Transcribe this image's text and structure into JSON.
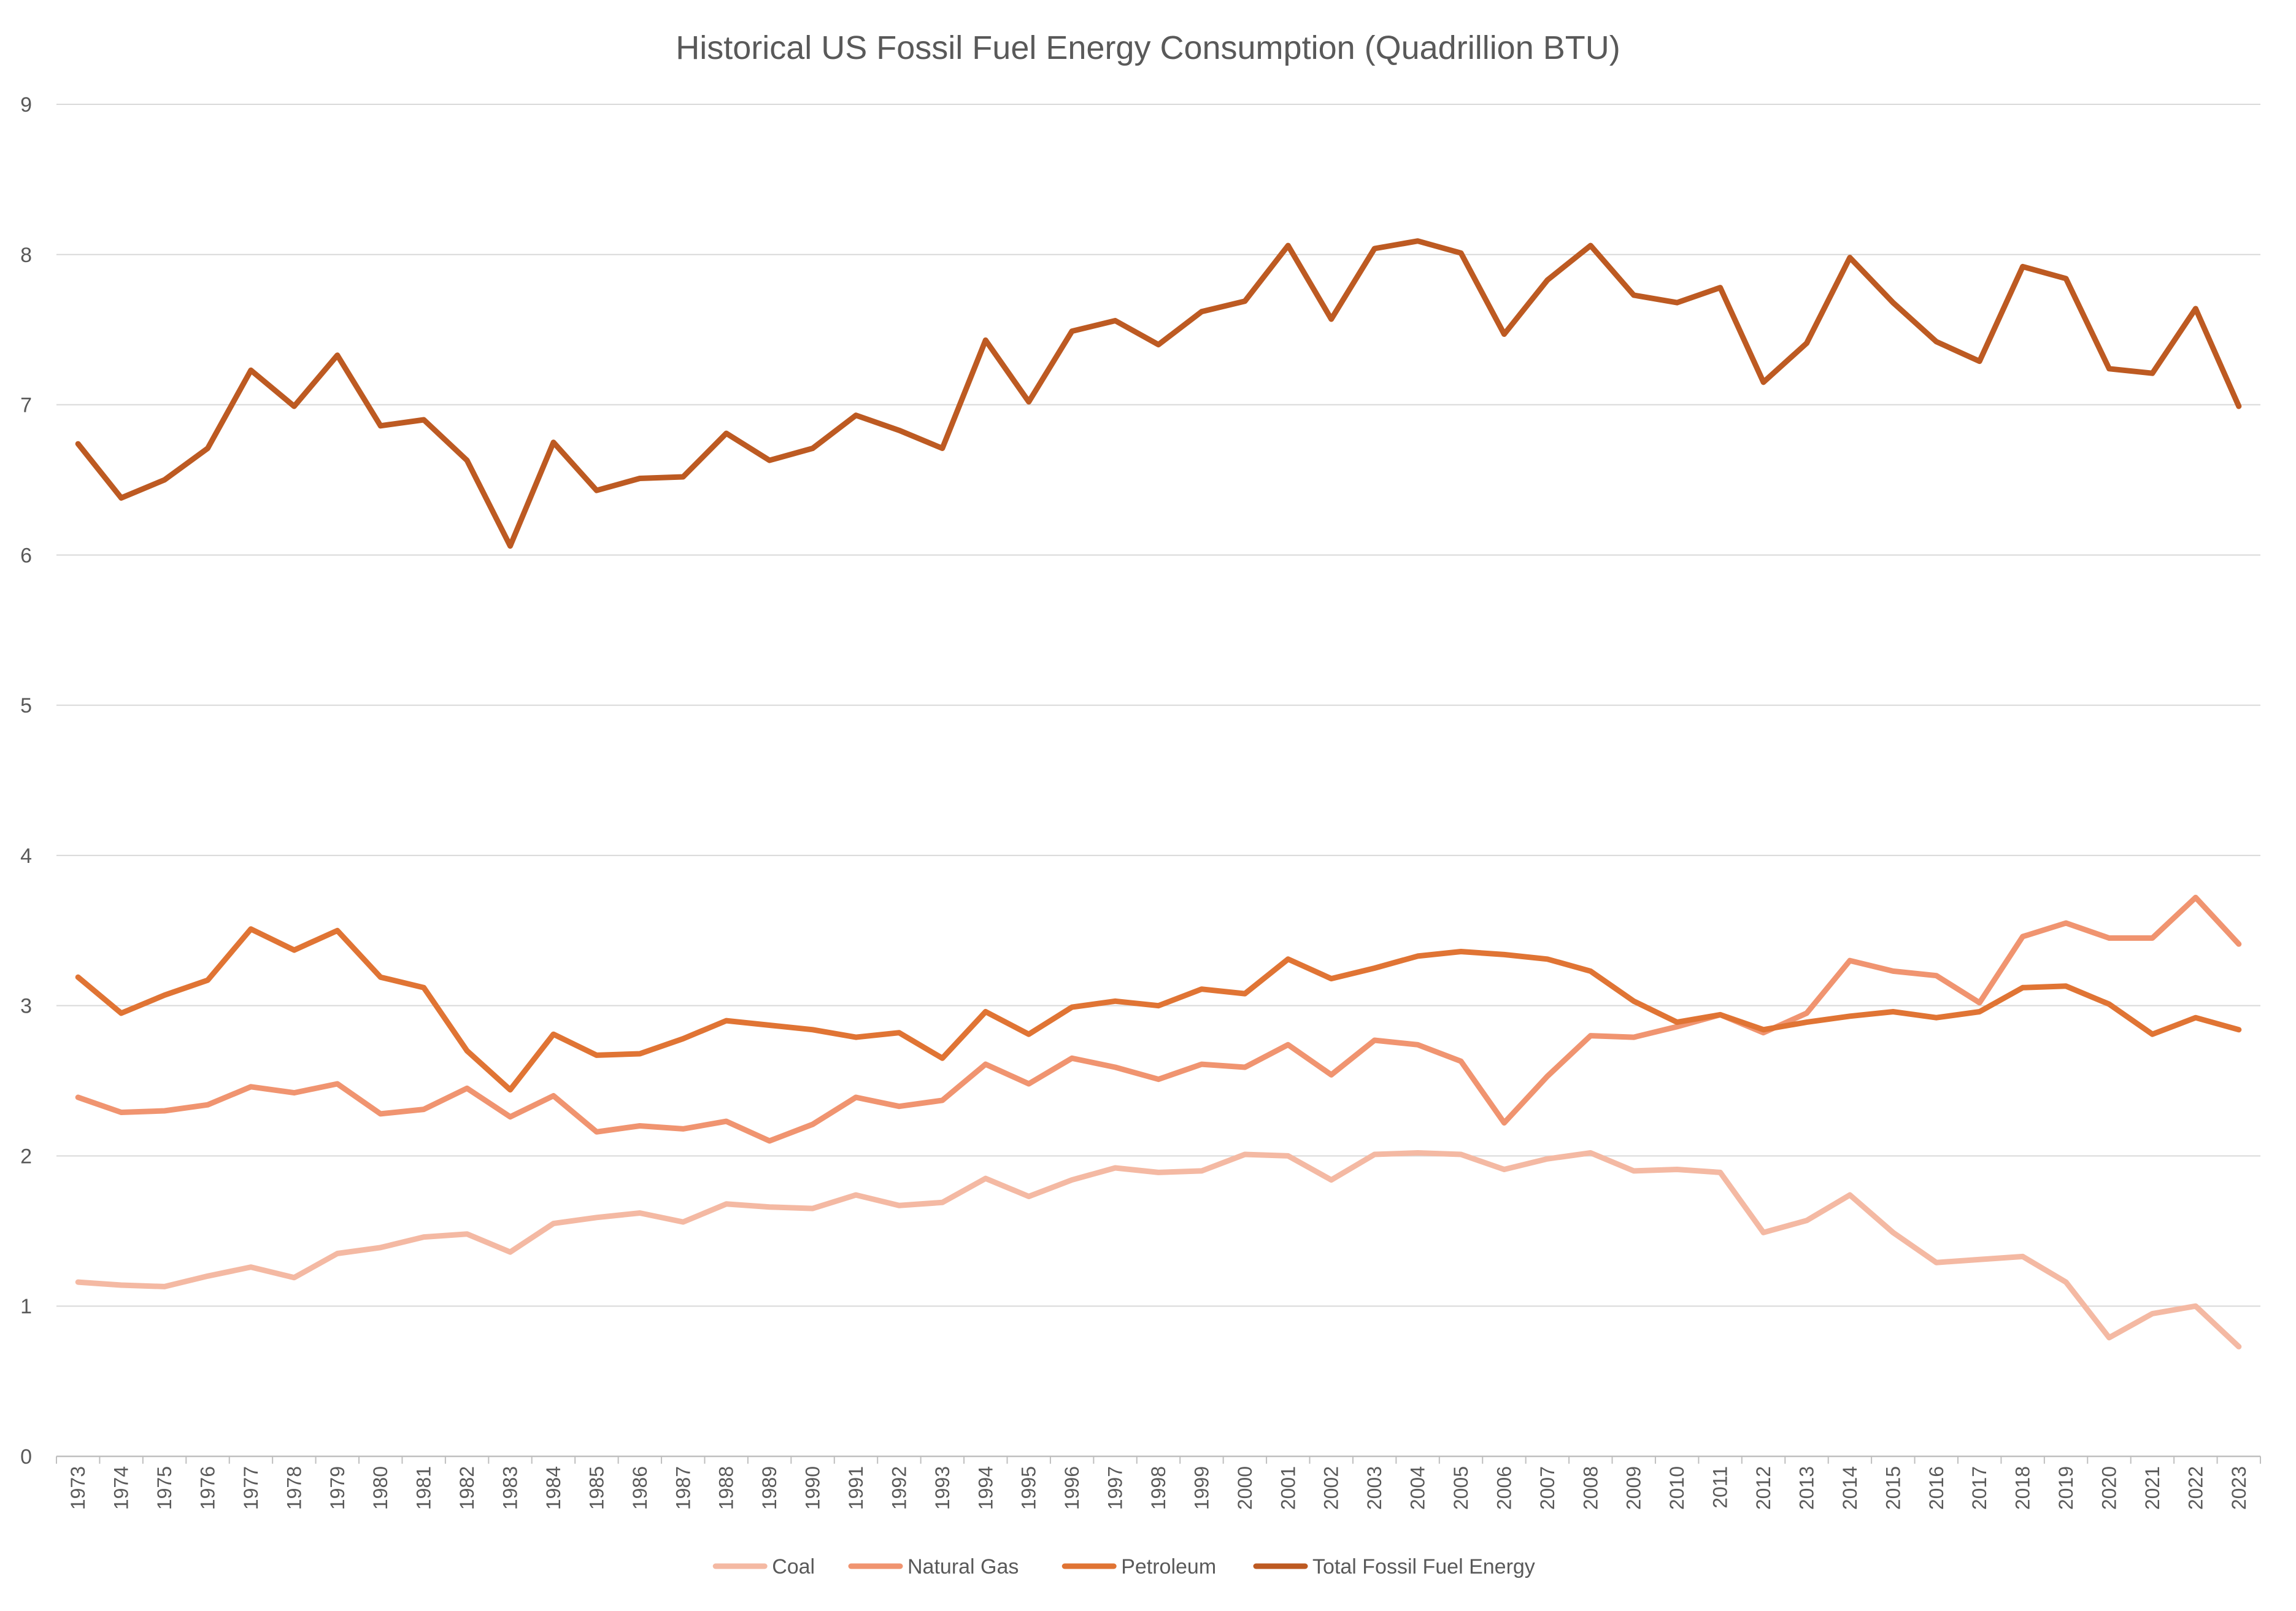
{
  "chart_data": {
    "type": "line",
    "title": "Historical US Fossil Fuel Energy Consumption (Quadrillion BTU)",
    "xlabel": "",
    "ylabel": "",
    "ylim": [
      0,
      9
    ],
    "yticks": [
      "0",
      "1",
      "2",
      "3",
      "4",
      "5",
      "6",
      "7",
      "8",
      "9"
    ],
    "grid": true,
    "legend_position": "bottom",
    "categories": [
      "1973",
      "1974",
      "1975",
      "1976",
      "1977",
      "1978",
      "1979",
      "1980",
      "1981",
      "1982",
      "1983",
      "1984",
      "1985",
      "1986",
      "1987",
      "1988",
      "1989",
      "1990",
      "1991",
      "1992",
      "1993",
      "1994",
      "1995",
      "1996",
      "1997",
      "1998",
      "1999",
      "2000",
      "2001",
      "2002",
      "2003",
      "2004",
      "2005",
      "2006",
      "2007",
      "2008",
      "2009",
      "2010",
      "2011",
      "2012",
      "2013",
      "2014",
      "2015",
      "2016",
      "2017",
      "2018",
      "2019",
      "2020",
      "2021",
      "2022",
      "2023"
    ],
    "series": [
      {
        "name": "Coal",
        "color": "#F4B9A3",
        "values": [
          1.16,
          1.14,
          1.13,
          1.2,
          1.26,
          1.19,
          1.35,
          1.39,
          1.46,
          1.48,
          1.36,
          1.55,
          1.59,
          1.62,
          1.56,
          1.68,
          1.66,
          1.65,
          1.74,
          1.67,
          1.69,
          1.85,
          1.73,
          1.84,
          1.92,
          1.89,
          1.9,
          2.01,
          2.0,
          1.84,
          2.01,
          2.02,
          2.01,
          1.91,
          1.98,
          2.02,
          1.9,
          1.91,
          1.89,
          1.49,
          1.57,
          1.74,
          1.49,
          1.29,
          1.31,
          1.33,
          1.16,
          0.79,
          0.95,
          1.0,
          0.73
        ]
      },
      {
        "name": "Natural Gas",
        "color": "#F09470",
        "values": [
          2.39,
          2.29,
          2.3,
          2.34,
          2.46,
          2.42,
          2.48,
          2.28,
          2.31,
          2.45,
          2.26,
          2.4,
          2.16,
          2.2,
          2.18,
          2.23,
          2.1,
          2.21,
          2.39,
          2.33,
          2.37,
          2.61,
          2.48,
          2.65,
          2.59,
          2.51,
          2.61,
          2.59,
          2.74,
          2.54,
          2.77,
          2.74,
          2.63,
          2.22,
          2.53,
          2.8,
          2.79,
          2.86,
          2.94,
          2.82,
          2.95,
          3.3,
          3.23,
          3.2,
          3.02,
          3.46,
          3.55,
          3.45,
          3.45,
          3.72,
          3.41
        ]
      },
      {
        "name": "Petroleum",
        "color": "#E07434",
        "values": [
          3.19,
          2.95,
          3.07,
          3.17,
          3.51,
          3.37,
          3.5,
          3.19,
          3.12,
          2.7,
          2.44,
          2.81,
          2.67,
          2.68,
          2.78,
          2.9,
          2.87,
          2.84,
          2.79,
          2.82,
          2.65,
          2.96,
          2.81,
          2.99,
          3.03,
          3.0,
          3.11,
          3.08,
          3.31,
          3.18,
          3.25,
          3.33,
          3.36,
          3.34,
          3.31,
          3.23,
          3.03,
          2.89,
          2.94,
          2.84,
          2.89,
          2.93,
          2.96,
          2.92,
          2.96,
          3.12,
          3.13,
          3.01,
          2.81,
          2.92,
          2.84
        ]
      },
      {
        "name": "Total Fossil Fuel Energy",
        "color": "#BD5A22",
        "values": [
          6.74,
          6.38,
          6.5,
          6.71,
          7.23,
          6.99,
          7.33,
          6.86,
          6.9,
          6.63,
          6.06,
          6.75,
          6.43,
          6.51,
          6.52,
          6.81,
          6.63,
          6.71,
          6.93,
          6.83,
          6.71,
          7.43,
          7.02,
          7.49,
          7.56,
          7.4,
          7.62,
          7.69,
          8.06,
          7.57,
          8.04,
          8.09,
          8.01,
          7.47,
          7.83,
          8.06,
          7.73,
          7.68,
          7.78,
          7.15,
          7.41,
          7.98,
          7.68,
          7.42,
          7.29,
          7.92,
          7.84,
          7.24,
          7.21,
          7.64,
          6.99
        ]
      }
    ]
  }
}
